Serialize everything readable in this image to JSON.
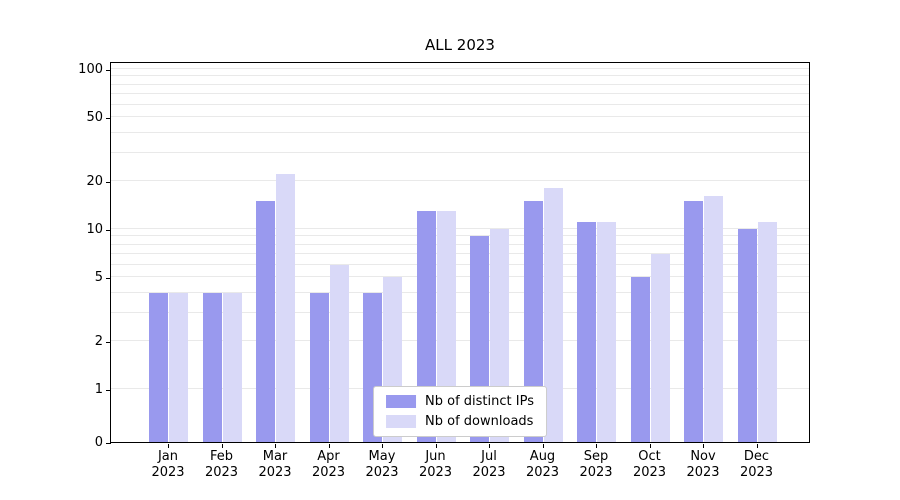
{
  "chart_data": {
    "type": "bar",
    "title": "ALL 2023",
    "categories": [
      "Jan",
      "Feb",
      "Mar",
      "Apr",
      "May",
      "Jun",
      "Jul",
      "Aug",
      "Sep",
      "Oct",
      "Nov",
      "Dec"
    ],
    "year": "2023",
    "series": [
      {
        "name": "Nb of distinct IPs",
        "color": "#9999ee",
        "values": [
          4,
          4,
          15,
          4,
          4,
          13,
          9,
          15,
          11,
          5,
          15,
          10
        ]
      },
      {
        "name": "Nb of downloads",
        "color": "#d9d9f8",
        "values": [
          4,
          4,
          22,
          6,
          5,
          13,
          10,
          18,
          11,
          7,
          16,
          11
        ]
      }
    ],
    "yscale": "symlog",
    "yticks": [
      0,
      1,
      2,
      5,
      10,
      20,
      50,
      100
    ],
    "ylim": [
      0,
      100
    ],
    "grid": "horizontal",
    "legend_position": "bottom-center-inside"
  }
}
